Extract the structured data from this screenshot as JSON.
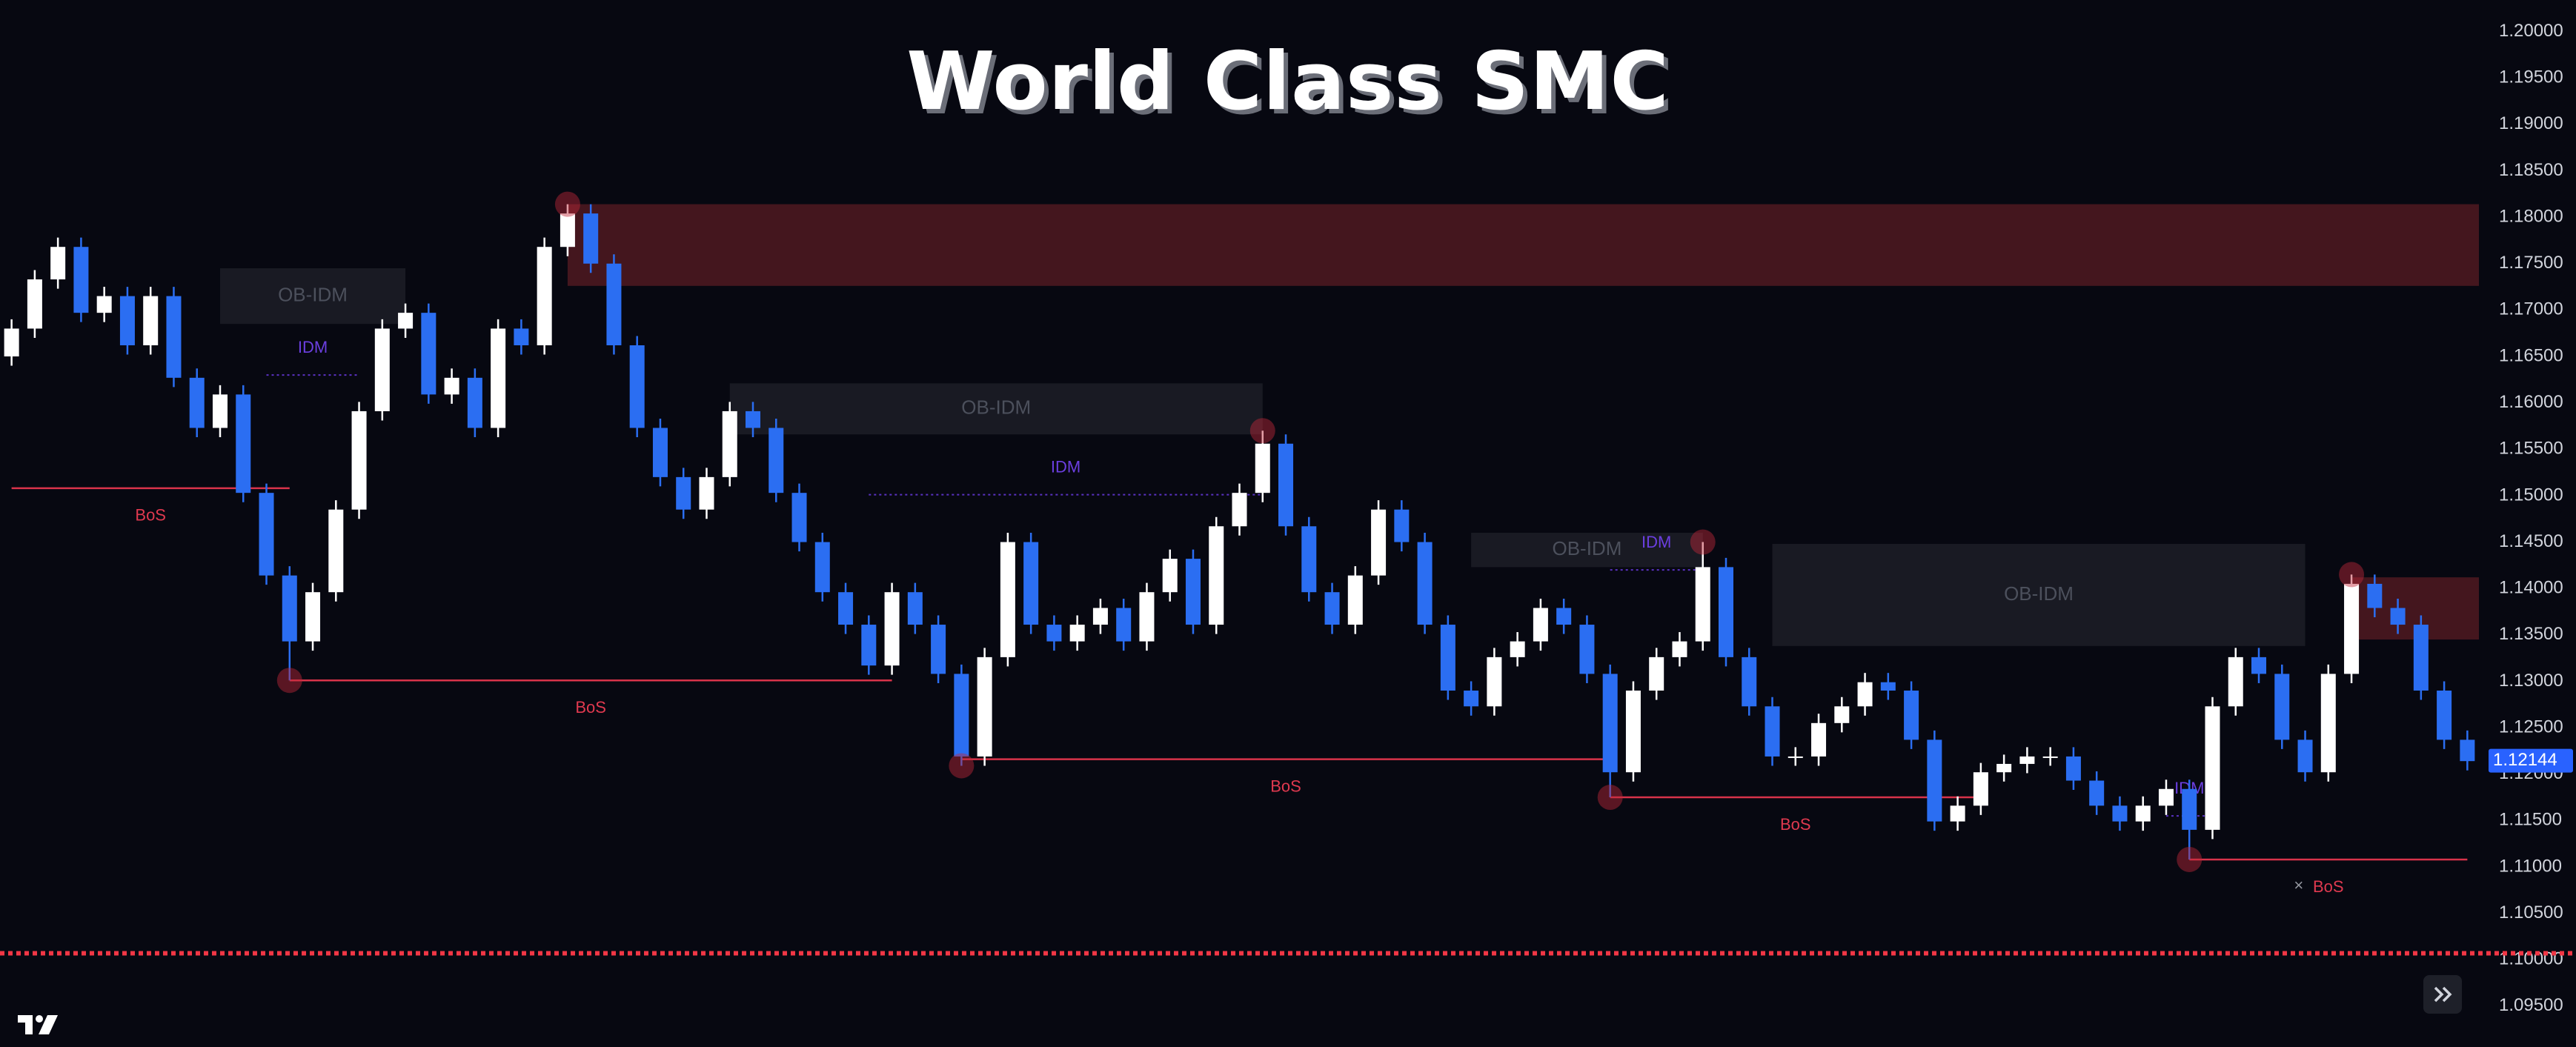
{
  "chart_data": {
    "type": "candlestick",
    "title": "World Class SMC",
    "up_color": "#ffffff",
    "down_color": "#2b6ef2",
    "ylim": [
      1.0906,
      1.2034
    ],
    "yticks": [
      {
        "value": 1.095,
        "label": "1.09500"
      },
      {
        "value": 1.1,
        "label": "1.10000"
      },
      {
        "value": 1.105,
        "label": "1.10500"
      },
      {
        "value": 1.11,
        "label": "1.11000"
      },
      {
        "value": 1.115,
        "label": "1.11500"
      },
      {
        "value": 1.12,
        "label": "1.12000"
      },
      {
        "value": 1.125,
        "label": "1.12500"
      },
      {
        "value": 1.13,
        "label": "1.13000"
      },
      {
        "value": 1.135,
        "label": "1.13500"
      },
      {
        "value": 1.14,
        "label": "1.14000"
      },
      {
        "value": 1.145,
        "label": "1.14500"
      },
      {
        "value": 1.15,
        "label": "1.15000"
      },
      {
        "value": 1.155,
        "label": "1.15500"
      },
      {
        "value": 1.16,
        "label": "1.16000"
      },
      {
        "value": 1.165,
        "label": "1.16500"
      },
      {
        "value": 1.17,
        "label": "1.17000"
      },
      {
        "value": 1.175,
        "label": "1.17500"
      },
      {
        "value": 1.18,
        "label": "1.18000"
      },
      {
        "value": 1.185,
        "label": "1.18500"
      },
      {
        "value": 1.19,
        "label": "1.19000"
      },
      {
        "value": 1.195,
        "label": "1.19500"
      },
      {
        "value": 1.2,
        "label": "1.20000"
      }
    ],
    "grid": false,
    "ohlc": [
      [
        1.165,
        1.169,
        1.164,
        1.168
      ],
      [
        1.168,
        1.1743,
        1.167,
        1.1733
      ],
      [
        1.1733,
        1.1778,
        1.1723,
        1.1768
      ],
      [
        1.1768,
        1.1778,
        1.1687,
        1.1697
      ],
      [
        1.1697,
        1.1725,
        1.1687,
        1.1715
      ],
      [
        1.1715,
        1.1725,
        1.1652,
        1.1662
      ],
      [
        1.1662,
        1.1725,
        1.1652,
        1.1715
      ],
      [
        1.1715,
        1.1725,
        1.1617,
        1.1627
      ],
      [
        1.1627,
        1.1637,
        1.1563,
        1.1573
      ],
      [
        1.1573,
        1.1619,
        1.1563,
        1.1609
      ],
      [
        1.1609,
        1.1619,
        1.1493,
        1.1503
      ],
      [
        1.1503,
        1.1513,
        1.1404,
        1.1414
      ],
      [
        1.1414,
        1.1424,
        1.1301,
        1.1343
      ],
      [
        1.1343,
        1.1406,
        1.1333,
        1.1396
      ],
      [
        1.1396,
        1.1495,
        1.1386,
        1.1485
      ],
      [
        1.1485,
        1.1601,
        1.1475,
        1.1591
      ],
      [
        1.1591,
        1.169,
        1.1581,
        1.168
      ],
      [
        1.168,
        1.1707,
        1.167,
        1.1697
      ],
      [
        1.1697,
        1.1707,
        1.1599,
        1.1609
      ],
      [
        1.1609,
        1.1637,
        1.1599,
        1.1627
      ],
      [
        1.1627,
        1.1637,
        1.1563,
        1.1573
      ],
      [
        1.1573,
        1.169,
        1.1563,
        1.168
      ],
      [
        1.168,
        1.169,
        1.1652,
        1.1662
      ],
      [
        1.1662,
        1.1778,
        1.1652,
        1.1768
      ],
      [
        1.1768,
        1.1814,
        1.1758,
        1.1804
      ],
      [
        1.1804,
        1.1814,
        1.174,
        1.175
      ],
      [
        1.175,
        1.176,
        1.1652,
        1.1662
      ],
      [
        1.1662,
        1.1672,
        1.1563,
        1.1573
      ],
      [
        1.1573,
        1.1583,
        1.151,
        1.152
      ],
      [
        1.152,
        1.153,
        1.1475,
        1.1485
      ],
      [
        1.1485,
        1.153,
        1.1475,
        1.152
      ],
      [
        1.152,
        1.1601,
        1.151,
        1.1591
      ],
      [
        1.1591,
        1.1601,
        1.1563,
        1.1573
      ],
      [
        1.1573,
        1.1583,
        1.1493,
        1.1503
      ],
      [
        1.1503,
        1.1513,
        1.144,
        1.145
      ],
      [
        1.145,
        1.146,
        1.1386,
        1.1396
      ],
      [
        1.1396,
        1.1406,
        1.1351,
        1.1361
      ],
      [
        1.1361,
        1.1371,
        1.1307,
        1.1317
      ],
      [
        1.1317,
        1.1406,
        1.1307,
        1.1396
      ],
      [
        1.1396,
        1.1406,
        1.1351,
        1.1361
      ],
      [
        1.1361,
        1.1371,
        1.1298,
        1.1308
      ],
      [
        1.1308,
        1.1318,
        1.1209,
        1.1219
      ],
      [
        1.1219,
        1.1336,
        1.1209,
        1.1326
      ],
      [
        1.1326,
        1.146,
        1.1316,
        1.145
      ],
      [
        1.145,
        1.146,
        1.1351,
        1.1361
      ],
      [
        1.1361,
        1.1371,
        1.1333,
        1.1343
      ],
      [
        1.1343,
        1.1371,
        1.1333,
        1.1361
      ],
      [
        1.1361,
        1.1389,
        1.1351,
        1.1379
      ],
      [
        1.1379,
        1.1389,
        1.1333,
        1.1343
      ],
      [
        1.1343,
        1.1406,
        1.1333,
        1.1396
      ],
      [
        1.1396,
        1.1442,
        1.1386,
        1.1432
      ],
      [
        1.1432,
        1.1442,
        1.1351,
        1.1361
      ],
      [
        1.1361,
        1.1477,
        1.1351,
        1.1467
      ],
      [
        1.1467,
        1.1513,
        1.1457,
        1.1503
      ],
      [
        1.1503,
        1.157,
        1.1493,
        1.1556
      ],
      [
        1.1556,
        1.1566,
        1.1457,
        1.1467
      ],
      [
        1.1467,
        1.1477,
        1.1386,
        1.1396
      ],
      [
        1.1396,
        1.1406,
        1.1351,
        1.1361
      ],
      [
        1.1361,
        1.1424,
        1.1351,
        1.1414
      ],
      [
        1.1414,
        1.1495,
        1.1404,
        1.1485
      ],
      [
        1.1485,
        1.1495,
        1.144,
        1.145
      ],
      [
        1.145,
        1.146,
        1.1351,
        1.1361
      ],
      [
        1.1361,
        1.1371,
        1.128,
        1.129
      ],
      [
        1.129,
        1.13,
        1.1263,
        1.1273
      ],
      [
        1.1273,
        1.1336,
        1.1263,
        1.1326
      ],
      [
        1.1326,
        1.1353,
        1.1316,
        1.1343
      ],
      [
        1.1343,
        1.1389,
        1.1333,
        1.1379
      ],
      [
        1.1379,
        1.1389,
        1.1351,
        1.1361
      ],
      [
        1.1361,
        1.1371,
        1.1298,
        1.1308
      ],
      [
        1.1308,
        1.1318,
        1.1175,
        1.1202
      ],
      [
        1.1202,
        1.13,
        1.1192,
        1.129
      ],
      [
        1.129,
        1.1336,
        1.128,
        1.1326
      ],
      [
        1.1326,
        1.1353,
        1.1316,
        1.1343
      ],
      [
        1.1343,
        1.145,
        1.1333,
        1.1423
      ],
      [
        1.1423,
        1.1433,
        1.1316,
        1.1326
      ],
      [
        1.1326,
        1.1336,
        1.1263,
        1.1273
      ],
      [
        1.1273,
        1.1283,
        1.1209,
        1.1219
      ],
      [
        1.1219,
        1.1229,
        1.1209,
        1.1219
      ],
      [
        1.1219,
        1.1265,
        1.1209,
        1.1255
      ],
      [
        1.1255,
        1.1283,
        1.1245,
        1.1273
      ],
      [
        1.1273,
        1.1309,
        1.1263,
        1.1299
      ],
      [
        1.1299,
        1.1309,
        1.128,
        1.129
      ],
      [
        1.129,
        1.13,
        1.1227,
        1.1237
      ],
      [
        1.1237,
        1.1247,
        1.1139,
        1.1149
      ],
      [
        1.1149,
        1.1176,
        1.1139,
        1.1166
      ],
      [
        1.1166,
        1.1212,
        1.1156,
        1.1202
      ],
      [
        1.1202,
        1.1221,
        1.1192,
        1.1211
      ],
      [
        1.1211,
        1.1229,
        1.1201,
        1.1219
      ],
      [
        1.1219,
        1.1229,
        1.1209,
        1.1219
      ],
      [
        1.1219,
        1.1229,
        1.1183,
        1.1193
      ],
      [
        1.1193,
        1.1203,
        1.1156,
        1.1166
      ],
      [
        1.1166,
        1.1176,
        1.1139,
        1.1149
      ],
      [
        1.1149,
        1.1176,
        1.1139,
        1.1166
      ],
      [
        1.1166,
        1.1194,
        1.1156,
        1.1184
      ],
      [
        1.1184,
        1.1194,
        1.1108,
        1.114
      ],
      [
        1.114,
        1.1283,
        1.113,
        1.1273
      ],
      [
        1.1273,
        1.1336,
        1.1263,
        1.1326
      ],
      [
        1.1326,
        1.1336,
        1.1298,
        1.1308
      ],
      [
        1.1308,
        1.1318,
        1.1227,
        1.1237
      ],
      [
        1.1237,
        1.1247,
        1.1192,
        1.1202
      ],
      [
        1.1202,
        1.1318,
        1.1192,
        1.1308
      ],
      [
        1.1308,
        1.1415,
        1.1298,
        1.1405
      ],
      [
        1.1405,
        1.1415,
        1.1369,
        1.1379
      ],
      [
        1.1379,
        1.1389,
        1.1351,
        1.1361
      ],
      [
        1.1361,
        1.1371,
        1.128,
        1.129
      ],
      [
        1.129,
        1.13,
        1.1227,
        1.1237
      ],
      [
        1.1237,
        1.1247,
        1.1204,
        1.1214
      ]
    ],
    "zones": [
      {
        "top": 1.1814,
        "bottom": 1.1726,
        "from": 24,
        "to": 107,
        "color": "#4a1820"
      },
      {
        "label": "OB-IDM",
        "top": 1.1745,
        "bottom": 1.1685,
        "from": 9,
        "to": 17,
        "color": "#1b1c25"
      },
      {
        "label": "OB-IDM",
        "top": 1.1621,
        "bottom": 1.1566,
        "from": 31,
        "to": 54,
        "color": "#1b1c25"
      },
      {
        "label": "OB-IDM",
        "top": 1.146,
        "bottom": 1.1423,
        "from": 63,
        "to": 73,
        "color": "#1b1c25"
      },
      {
        "label": "OB-IDM",
        "top": 1.1448,
        "bottom": 1.1338,
        "from": 76,
        "to": 99,
        "color": "#1b1c25"
      },
      {
        "top": 1.1412,
        "bottom": 1.1345,
        "from": 101,
        "to": 107,
        "color": "#4a1820"
      }
    ],
    "bos_lines": [
      {
        "label": "BoS",
        "value": 1.1508,
        "from": 0,
        "to": 12
      },
      {
        "label": "BoS",
        "value": 1.1301,
        "from": 12,
        "to": 38
      },
      {
        "label": "BoS",
        "value": 1.1216,
        "from": 41,
        "to": 69
      },
      {
        "label": "BoS",
        "value": 1.1175,
        "from": 69,
        "to": 85
      },
      {
        "label": "BoS",
        "value": 1.1108,
        "from": 94,
        "to": 106
      }
    ],
    "idm_lines": [
      {
        "label": "IDM",
        "value": 1.163,
        "from": 11,
        "to": 15
      },
      {
        "label": "IDM",
        "value": 1.1501,
        "from": 37,
        "to": 54
      },
      {
        "label": "IDM",
        "value": 1.142,
        "from": 69,
        "to": 73
      },
      {
        "label": "IDM",
        "value": 1.1155,
        "from": 93,
        "to": 95
      }
    ],
    "cross": "×",
    "last_price": 1.12144,
    "alert_line": 1.1007
  }
}
